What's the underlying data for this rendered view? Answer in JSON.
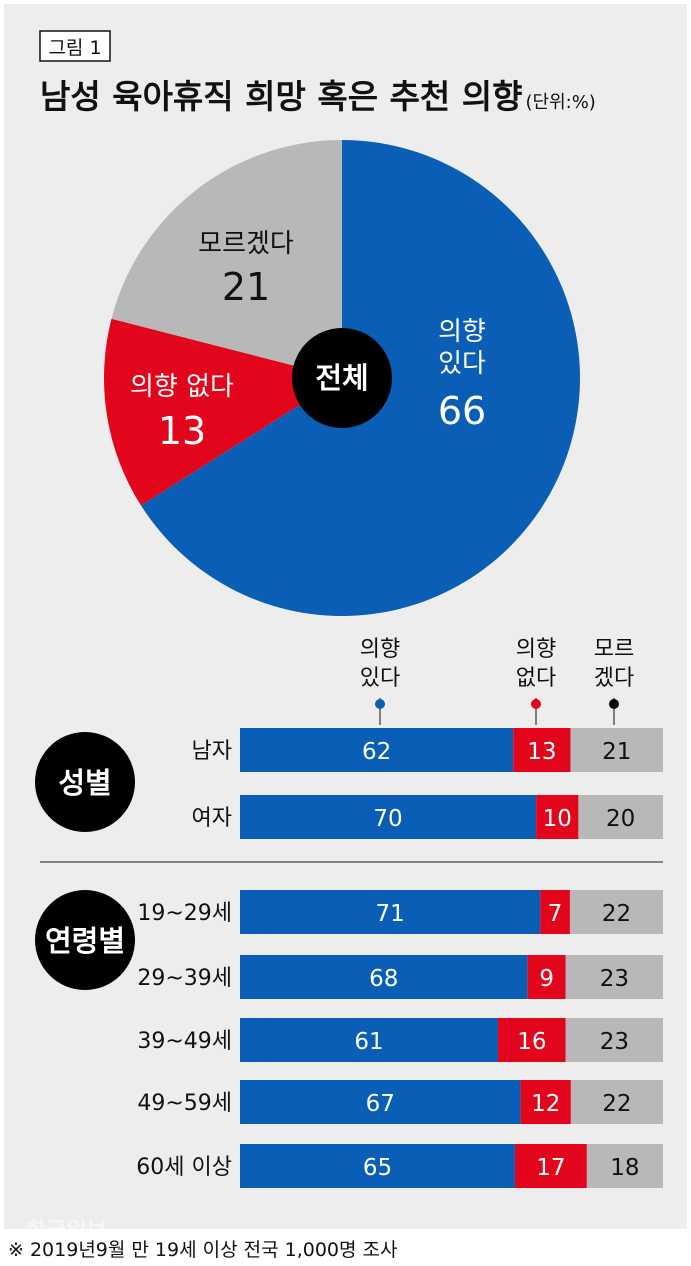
{
  "figure_label": "그림 1",
  "title": "남성 육아휴직 희망 혹은 추천 의향",
  "unit": "(단위:%)",
  "footnote": "※ 2019년9월 만 19세 이상 전국 1,000명 조사",
  "watermark": "한국일보",
  "colors": {
    "background": "#ededed",
    "yes": "#0a5eb5",
    "no": "#e3051b",
    "unknown": "#b8b8b8",
    "badge": "#000000"
  },
  "chart_data": [
    {
      "type": "pie",
      "center_label": "전체",
      "slices": [
        {
          "label": "의향 있다",
          "value": 66
        },
        {
          "label": "의향 없다",
          "value": 13
        },
        {
          "label": "모르겠다",
          "value": 21
        }
      ]
    },
    {
      "type": "bar",
      "orientation": "horizontal",
      "stacked": true,
      "series": [
        {
          "name": "의향 있다"
        },
        {
          "name": "의향 없다"
        },
        {
          "name": "모르겠다"
        }
      ],
      "groups": [
        {
          "label": "성별",
          "rows": [
            {
              "category": "남자",
              "values": [
                62,
                13,
                21
              ]
            },
            {
              "category": "여자",
              "values": [
                70,
                10,
                20
              ]
            }
          ]
        },
        {
          "label": "연령별",
          "rows": [
            {
              "category": "19~29세",
              "values": [
                71,
                7,
                22
              ]
            },
            {
              "category": "29~39세",
              "values": [
                68,
                9,
                23
              ]
            },
            {
              "category": "39~49세",
              "values": [
                61,
                16,
                23
              ]
            },
            {
              "category": "49~59세",
              "values": [
                67,
                12,
                22
              ]
            },
            {
              "category": "60세 이상",
              "values": [
                65,
                17,
                18
              ]
            }
          ]
        }
      ]
    }
  ]
}
